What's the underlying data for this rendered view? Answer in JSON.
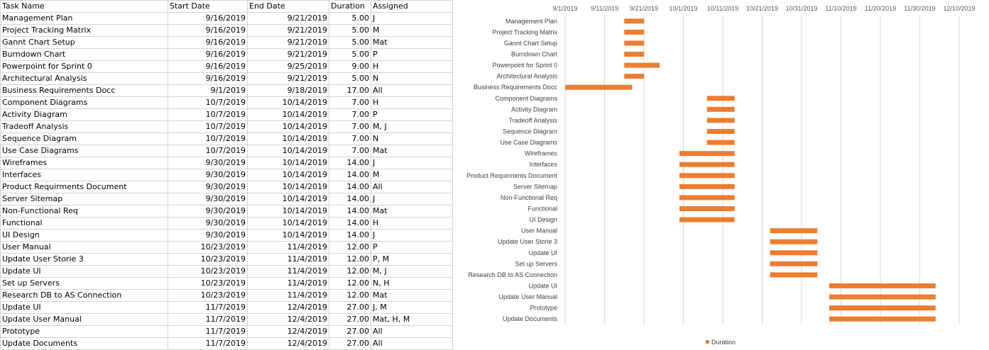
{
  "table": {
    "headers": [
      "Task Name",
      "Start Date",
      "End Date",
      "Duration",
      "Assigned"
    ],
    "rows": [
      [
        "Management Plan",
        "9/16/2019",
        "9/21/2019",
        "5.00",
        "J"
      ],
      [
        "Project Tracking Matrix",
        "9/16/2019",
        "9/21/2019",
        "5.00",
        "M"
      ],
      [
        "Gannt Chart Setup",
        "9/16/2019",
        "9/21/2019",
        "5.00",
        "Mat"
      ],
      [
        "Burndown Chart",
        "9/16/2019",
        "9/21/2019",
        "5.00",
        "P"
      ],
      [
        "Powerpoint for Sprint 0",
        "9/16/2019",
        "9/25/2019",
        "9.00",
        "H"
      ],
      [
        "Architectural Analysis",
        "9/16/2019",
        "9/21/2019",
        "5.00",
        "N"
      ],
      [
        "Business Requirements Docc",
        "9/1/2019",
        "9/18/2019",
        "17.00",
        "All"
      ],
      [
        "Component Diagrams",
        "10/7/2019",
        "10/14/2019",
        "7.00",
        "H"
      ],
      [
        "Activity Diagram",
        "10/7/2019",
        "10/14/2019",
        "7.00",
        "P"
      ],
      [
        "Tradeoff Analysis",
        "10/7/2019",
        "10/14/2019",
        "7.00",
        "M, J"
      ],
      [
        "Sequence Diagram",
        "10/7/2019",
        "10/14/2019",
        "7.00",
        "N"
      ],
      [
        "Use Case Diagrams",
        "10/7/2019",
        "10/14/2019",
        "7.00",
        "Mat"
      ],
      [
        "Wireframes",
        "9/30/2019",
        "10/14/2019",
        "14.00",
        "J"
      ],
      [
        "Interfaces",
        "9/30/2019",
        "10/14/2019",
        "14.00",
        "M"
      ],
      [
        "Product Requirments Document",
        "9/30/2019",
        "10/14/2019",
        "14.00",
        "All"
      ],
      [
        "Server Sitemap",
        "9/30/2019",
        "10/14/2019",
        "14.00",
        "J"
      ],
      [
        "Non-Functional Req",
        "9/30/2019",
        "10/14/2019",
        "14.00",
        "Mat"
      ],
      [
        "Functional",
        "9/30/2019",
        "10/14/2019",
        "14.00",
        "H"
      ],
      [
        "UI Design",
        "9/30/2019",
        "10/14/2019",
        "14.00",
        "J"
      ],
      [
        "User Manual",
        "10/23/2019",
        "11/4/2019",
        "12.00",
        "P"
      ],
      [
        "Update User Storie 3",
        "10/23/2019",
        "11/4/2019",
        "12.00",
        "P, M"
      ],
      [
        "Update UI",
        "10/23/2019",
        "11/4/2019",
        "12.00",
        "M, J"
      ],
      [
        "Set up Servers",
        "10/23/2019",
        "11/4/2019",
        "12.00",
        "N, H"
      ],
      [
        "Research DB to AS Connection",
        "10/23/2019",
        "11/4/2019",
        "12.00",
        "Mat"
      ],
      [
        "Update UI",
        "11/7/2019",
        "12/4/2019",
        "27.00",
        "J, M"
      ],
      [
        "Update User Manual",
        "11/7/2019",
        "12/4/2019",
        "27.00",
        "Mat, H, M"
      ],
      [
        "Prototype",
        "11/7/2019",
        "12/4/2019",
        "27.00",
        "All"
      ],
      [
        "Update Documents",
        "11/7/2019",
        "12/4/2019",
        "27.00",
        "All"
      ]
    ]
  },
  "chart_data": {
    "type": "bar",
    "orientation": "horizontal-stacked-gantt",
    "title": "",
    "xlabel": "",
    "ylabel": "",
    "x_ticks": [
      "9/1/2019",
      "9/11/2019",
      "9/21/2019",
      "10/1/2019",
      "10/11/2019",
      "10/21/2019",
      "10/31/2019",
      "11/10/2019",
      "11/20/2019",
      "11/30/2019",
      "12/10/2019"
    ],
    "xlim": [
      "9/1/2019",
      "12/10/2019"
    ],
    "categories": [
      "Management Plan",
      "Project Tracking Matrix",
      "Gannt Chart Setup",
      "Burndown Chart",
      "Powerpoint for Sprint 0",
      "Architectural Analysis",
      "Business Requirements Docc",
      "Component Diagrams",
      "Activity Diagram",
      "Tradeoff Analysis",
      "Sequence Diagram",
      "Use Case Diagrams",
      "Wireframes",
      "Interfaces",
      "Product Requirments Document",
      "Server Sitemap",
      "Non-Functional Req",
      "Functional",
      "UI Design",
      "User Manual",
      "Update User Storie 3",
      "Update UI",
      "Set up Servers",
      "Research DB to AS Connection",
      "Update UI",
      "Update User Manual",
      "Prototype",
      "Update Documents"
    ],
    "start": [
      "9/16/2019",
      "9/16/2019",
      "9/16/2019",
      "9/16/2019",
      "9/16/2019",
      "9/16/2019",
      "9/1/2019",
      "10/7/2019",
      "10/7/2019",
      "10/7/2019",
      "10/7/2019",
      "10/7/2019",
      "9/30/2019",
      "9/30/2019",
      "9/30/2019",
      "9/30/2019",
      "9/30/2019",
      "9/30/2019",
      "9/30/2019",
      "10/23/2019",
      "10/23/2019",
      "10/23/2019",
      "10/23/2019",
      "10/23/2019",
      "11/7/2019",
      "11/7/2019",
      "11/7/2019",
      "11/7/2019"
    ],
    "series": [
      {
        "name": "Duration",
        "values": [
          5,
          5,
          5,
          5,
          9,
          5,
          17,
          7,
          7,
          7,
          7,
          7,
          14,
          14,
          14,
          14,
          14,
          14,
          14,
          12,
          12,
          12,
          12,
          12,
          27,
          27,
          27,
          27
        ],
        "color": "#ed7d31"
      }
    ],
    "grid": true,
    "legend": "bottom"
  }
}
